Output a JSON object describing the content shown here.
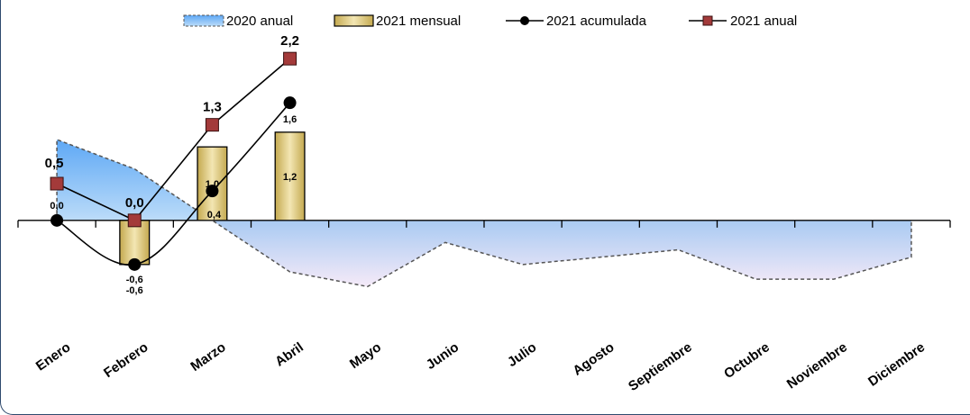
{
  "chart_data": {
    "type": "bar",
    "categories": [
      "Enero",
      "Febrero",
      "Marzo",
      "Abril",
      "Mayo",
      "Junio",
      "Julio",
      "Agosto",
      "Septiembre",
      "Octubre",
      "Noviembre",
      "Diciembre"
    ],
    "series": [
      {
        "name": "2020 anual",
        "kind": "area",
        "values": [
          1.1,
          0.7,
          0.0,
          -0.7,
          -0.9,
          -0.3,
          -0.6,
          -0.5,
          -0.4,
          -0.8,
          -0.8,
          -0.5
        ]
      },
      {
        "name": "2021 mensual",
        "kind": "bar",
        "values": [
          0.0,
          -0.6,
          1.0,
          1.2,
          null,
          null,
          null,
          null,
          null,
          null,
          null,
          null
        ]
      },
      {
        "name": "2021 acumulada",
        "kind": "line",
        "values": [
          0.0,
          -0.6,
          0.4,
          1.6,
          null,
          null,
          null,
          null,
          null,
          null,
          null,
          null
        ]
      },
      {
        "name": "2021 anual",
        "kind": "line",
        "values": [
          0.5,
          0.0,
          1.3,
          2.2,
          null,
          null,
          null,
          null,
          null,
          null,
          null,
          null
        ]
      }
    ],
    "data_labels": {
      "2021 mensual": [
        "0,0",
        "-0,6",
        "1,0",
        "1,2"
      ],
      "2021 acumulada": [
        "0,0",
        "-0,6",
        "0,4",
        "1,6"
      ],
      "2021 anual": [
        "0,5",
        "0,0",
        "1,3",
        "2,2"
      ]
    },
    "ylim": [
      -1.9,
      2.9
    ],
    "grid": false,
    "legend_position": "top",
    "colors": {
      "area_top": "#5ea8f5",
      "area_bottom": "#f3e8f8",
      "area_border": "#555555",
      "bar": "#d8c27a",
      "bar_border": "#000000",
      "acumulada": "#000000",
      "anual_marker": "#a33a3a"
    },
    "title": "",
    "xlabel": "",
    "ylabel": ""
  }
}
